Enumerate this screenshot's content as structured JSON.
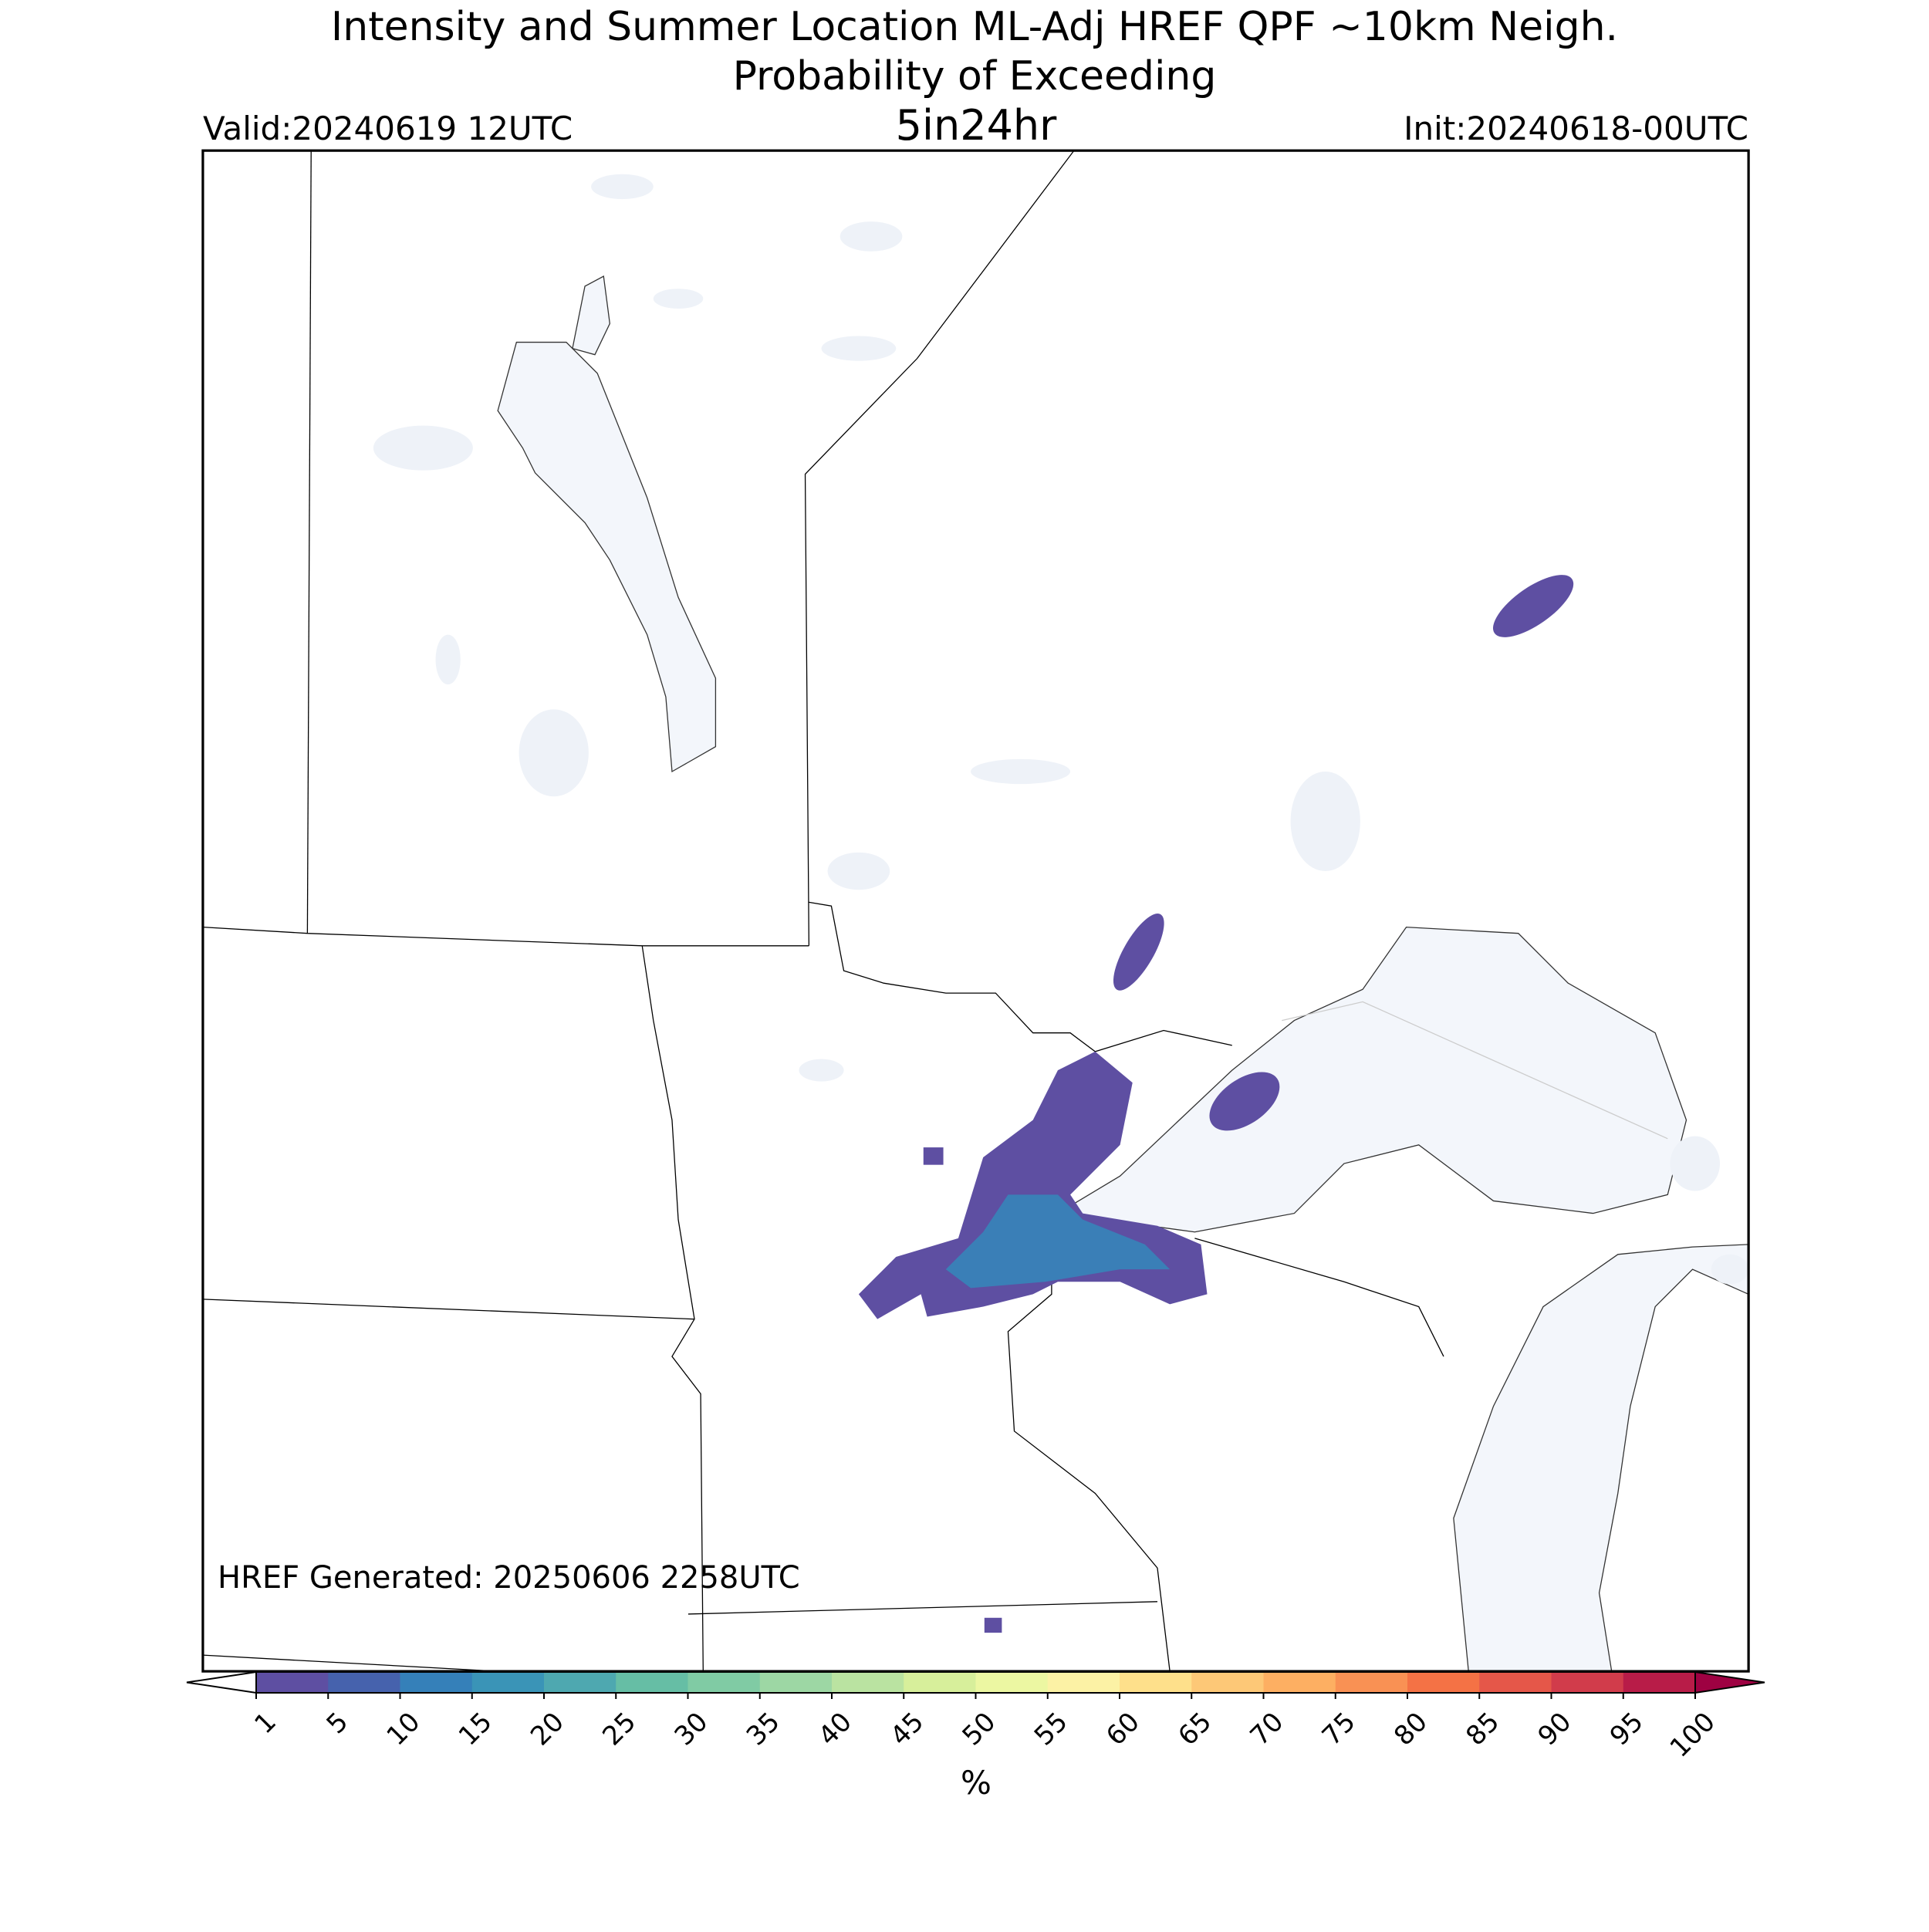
{
  "header": {
    "title_line1": "Intensity and Summer Location ML-Adj HREF QPF ~10km Neigh.",
    "title_line2": "Probability of Exceeding",
    "valid": "Valid:20240619 12UTC",
    "threshold": "5in24hr",
    "init": "Init:20240618-00UTC"
  },
  "footer_note": "HREF Generated: 20250606 2258UTC",
  "colorbar": {
    "ticks": [
      1,
      5,
      10,
      15,
      20,
      25,
      30,
      35,
      40,
      45,
      50,
      55,
      60,
      65,
      70,
      75,
      80,
      85,
      90,
      95,
      100
    ],
    "colors": [
      "#5e4fa2",
      "#4662ad",
      "#3580b9",
      "#3a94b7",
      "#4ea8b0",
      "#66bea5",
      "#80cba4",
      "#9dd7a4",
      "#bae3a1",
      "#d7ef9b",
      "#ecf7a2",
      "#fcf2a5",
      "#fee08b",
      "#fdc877",
      "#fdaf62",
      "#f99154",
      "#f47245",
      "#e55749",
      "#d13c4b",
      "#b81c48"
    ],
    "under_color": "#ffffff",
    "over_color": "#9e0142",
    "label": "%"
  }
}
